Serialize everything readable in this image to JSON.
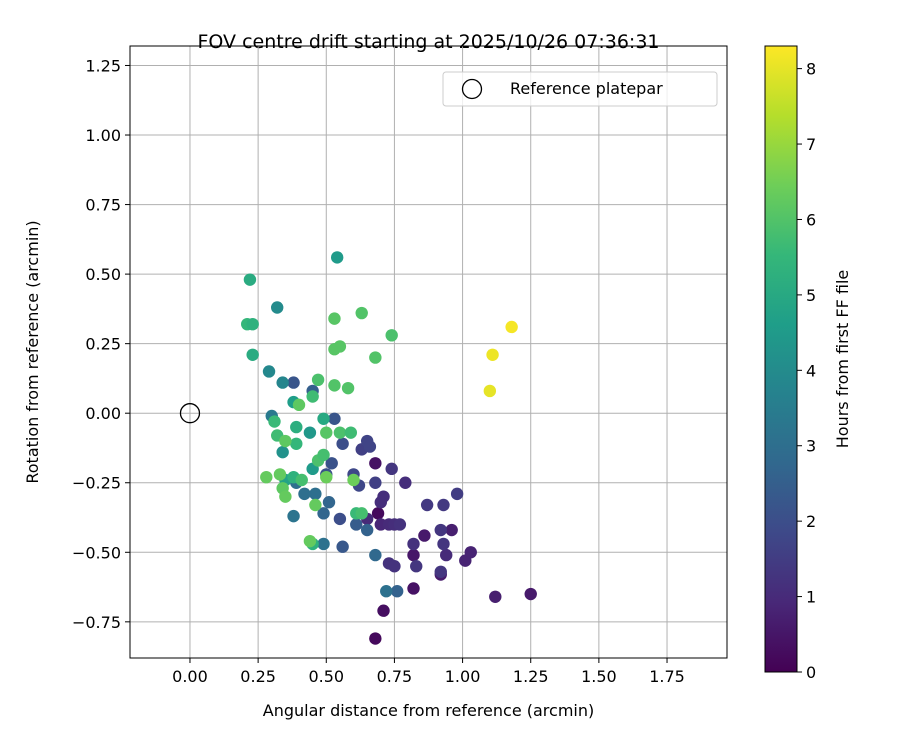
{
  "chart_data": {
    "type": "scatter",
    "title": "FOV centre drift starting at 2025/10/26 07:36:31",
    "xlabel": "Angular distance from reference (arcmin)",
    "ylabel": "Rotation from reference (arcmin)",
    "xlim": [
      -0.22,
      1.97
    ],
    "ylim": [
      -0.88,
      1.32
    ],
    "xticks": [
      "0.00",
      "0.25",
      "0.50",
      "0.75",
      "1.00",
      "1.25",
      "1.50",
      "1.75"
    ],
    "xtick_values": [
      0,
      0.25,
      0.5,
      0.75,
      1.0,
      1.25,
      1.5,
      1.75
    ],
    "yticks": [
      "−0.75",
      "−0.50",
      "−0.25",
      "0.00",
      "0.25",
      "0.50",
      "0.75",
      "1.00",
      "1.25"
    ],
    "ytick_values": [
      -0.75,
      -0.5,
      -0.25,
      0,
      0.25,
      0.5,
      0.75,
      1.0,
      1.25
    ],
    "grid": true,
    "legend": {
      "location": "top-right",
      "label": "Reference platepar"
    },
    "reference_point": {
      "x": 0.0,
      "y": 0.0
    },
    "colorbar": {
      "label": "Hours from first FF file",
      "range": [
        0,
        8.3
      ],
      "ticks": [
        "0",
        "1",
        "2",
        "3",
        "4",
        "5",
        "6",
        "7",
        "8"
      ],
      "tick_values": [
        0,
        1,
        2,
        3,
        4,
        5,
        6,
        7,
        8
      ],
      "colormap": "viridis",
      "stops": [
        "#440154",
        "#482878",
        "#3e4989",
        "#31688e",
        "#26828e",
        "#1f9e89",
        "#35b779",
        "#6ece58",
        "#b5de2b",
        "#fde725"
      ]
    },
    "series": [
      {
        "name": "FOV centre drift",
        "points": [
          {
            "x": 0.68,
            "y": -0.81,
            "h": 0.2
          },
          {
            "x": 0.71,
            "y": -0.71,
            "h": 0.3
          },
          {
            "x": 0.69,
            "y": -0.36,
            "h": 0.2
          },
          {
            "x": 0.68,
            "y": -0.18,
            "h": 0.4
          },
          {
            "x": 0.82,
            "y": -0.63,
            "h": 0.4
          },
          {
            "x": 0.82,
            "y": -0.51,
            "h": 0.5
          },
          {
            "x": 0.86,
            "y": -0.44,
            "h": 0.6
          },
          {
            "x": 0.92,
            "y": -0.58,
            "h": 0.6
          },
          {
            "x": 0.96,
            "y": -0.42,
            "h": 0.7
          },
          {
            "x": 1.01,
            "y": -0.53,
            "h": 0.8
          },
          {
            "x": 1.03,
            "y": -0.5,
            "h": 0.8
          },
          {
            "x": 1.12,
            "y": -0.66,
            "h": 0.7
          },
          {
            "x": 1.25,
            "y": -0.65,
            "h": 0.6
          },
          {
            "x": 0.94,
            "y": -0.51,
            "h": 1.0
          },
          {
            "x": 0.7,
            "y": -0.4,
            "h": 0.9
          },
          {
            "x": 0.73,
            "y": -0.4,
            "h": 1.0
          },
          {
            "x": 0.75,
            "y": -0.4,
            "h": 1.1
          },
          {
            "x": 0.77,
            "y": -0.4,
            "h": 1.2
          },
          {
            "x": 0.65,
            "y": -0.38,
            "h": 1.0
          },
          {
            "x": 0.71,
            "y": -0.3,
            "h": 1.1
          },
          {
            "x": 0.7,
            "y": -0.32,
            "h": 1.1
          },
          {
            "x": 0.74,
            "y": -0.2,
            "h": 1.3
          },
          {
            "x": 0.79,
            "y": -0.25,
            "h": 1.1
          },
          {
            "x": 0.73,
            "y": -0.54,
            "h": 1.2
          },
          {
            "x": 0.75,
            "y": -0.55,
            "h": 1.2
          },
          {
            "x": 0.83,
            "y": -0.55,
            "h": 1.3
          },
          {
            "x": 0.82,
            "y": -0.47,
            "h": 1.2
          },
          {
            "x": 0.92,
            "y": -0.57,
            "h": 1.3
          },
          {
            "x": 0.87,
            "y": -0.33,
            "h": 1.4
          },
          {
            "x": 0.92,
            "y": -0.42,
            "h": 1.3
          },
          {
            "x": 0.93,
            "y": -0.47,
            "h": 1.3
          },
          {
            "x": 0.93,
            "y": -0.33,
            "h": 1.4
          },
          {
            "x": 0.98,
            "y": -0.29,
            "h": 1.5
          },
          {
            "x": 0.63,
            "y": -0.13,
            "h": 1.6
          },
          {
            "x": 0.65,
            "y": -0.1,
            "h": 1.7
          },
          {
            "x": 0.66,
            "y": -0.12,
            "h": 1.7
          },
          {
            "x": 0.6,
            "y": -0.22,
            "h": 1.8
          },
          {
            "x": 0.62,
            "y": -0.26,
            "h": 1.8
          },
          {
            "x": 0.68,
            "y": -0.25,
            "h": 1.6
          },
          {
            "x": 0.56,
            "y": -0.11,
            "h": 2.0
          },
          {
            "x": 0.55,
            "y": -0.38,
            "h": 2.0
          },
          {
            "x": 0.52,
            "y": -0.18,
            "h": 2.1
          },
          {
            "x": 0.53,
            "y": -0.02,
            "h": 2.2
          },
          {
            "x": 0.5,
            "y": -0.22,
            "h": 2.1
          },
          {
            "x": 0.56,
            "y": -0.48,
            "h": 2.3
          },
          {
            "x": 0.61,
            "y": -0.4,
            "h": 2.4
          },
          {
            "x": 0.65,
            "y": -0.42,
            "h": 2.6
          },
          {
            "x": 0.68,
            "y": -0.51,
            "h": 2.8
          },
          {
            "x": 0.76,
            "y": -0.64,
            "h": 2.6
          },
          {
            "x": 0.72,
            "y": -0.64,
            "h": 3.1
          },
          {
            "x": 0.38,
            "y": 0.11,
            "h": 2.2
          },
          {
            "x": 0.45,
            "y": 0.08,
            "h": 2.5
          },
          {
            "x": 0.49,
            "y": -0.36,
            "h": 2.7
          },
          {
            "x": 0.46,
            "y": -0.29,
            "h": 3.0
          },
          {
            "x": 0.49,
            "y": -0.47,
            "h": 3.1
          },
          {
            "x": 0.51,
            "y": -0.32,
            "h": 2.7
          },
          {
            "x": 0.39,
            "y": -0.25,
            "h": 3.0
          },
          {
            "x": 0.38,
            "y": -0.37,
            "h": 3.2
          },
          {
            "x": 0.42,
            "y": -0.29,
            "h": 3.0
          },
          {
            "x": 0.3,
            "y": -0.01,
            "h": 3.4
          },
          {
            "x": 0.34,
            "y": 0.11,
            "h": 3.8
          },
          {
            "x": 0.29,
            "y": 0.15,
            "h": 3.9
          },
          {
            "x": 0.32,
            "y": 0.38,
            "h": 4.0
          },
          {
            "x": 0.34,
            "y": -0.14,
            "h": 4.2
          },
          {
            "x": 0.44,
            "y": -0.07,
            "h": 4.4
          },
          {
            "x": 0.45,
            "y": -0.2,
            "h": 4.5
          },
          {
            "x": 0.35,
            "y": -0.24,
            "h": 4.8
          },
          {
            "x": 0.38,
            "y": 0.04,
            "h": 4.6
          },
          {
            "x": 0.54,
            "y": 0.56,
            "h": 4.5
          },
          {
            "x": 0.49,
            "y": -0.02,
            "h": 5.0
          },
          {
            "x": 0.45,
            "y": -0.47,
            "h": 5.3
          },
          {
            "x": 0.38,
            "y": -0.23,
            "h": 5.3
          },
          {
            "x": 0.39,
            "y": -0.05,
            "h": 5.2
          },
          {
            "x": 0.23,
            "y": 0.21,
            "h": 5.1
          },
          {
            "x": 0.22,
            "y": 0.48,
            "h": 5.1
          },
          {
            "x": 0.21,
            "y": 0.32,
            "h": 5.5
          },
          {
            "x": 0.23,
            "y": 0.32,
            "h": 5.3
          },
          {
            "x": 0.39,
            "y": -0.11,
            "h": 5.5
          },
          {
            "x": 0.31,
            "y": -0.03,
            "h": 5.6
          },
          {
            "x": 0.32,
            "y": -0.08,
            "h": 5.7
          },
          {
            "x": 0.45,
            "y": 0.06,
            "h": 5.7
          },
          {
            "x": 0.41,
            "y": -0.24,
            "h": 5.8
          },
          {
            "x": 0.47,
            "y": -0.17,
            "h": 5.9
          },
          {
            "x": 0.49,
            "y": -0.15,
            "h": 5.8
          },
          {
            "x": 0.55,
            "y": -0.07,
            "h": 5.9
          },
          {
            "x": 0.59,
            "y": -0.07,
            "h": 5.7
          },
          {
            "x": 0.61,
            "y": -0.36,
            "h": 5.6
          },
          {
            "x": 0.63,
            "y": -0.36,
            "h": 5.8
          },
          {
            "x": 0.47,
            "y": 0.12,
            "h": 5.9
          },
          {
            "x": 0.53,
            "y": 0.1,
            "h": 6.0
          },
          {
            "x": 0.58,
            "y": 0.09,
            "h": 6.0
          },
          {
            "x": 0.74,
            "y": 0.28,
            "h": 5.9
          },
          {
            "x": 0.68,
            "y": 0.2,
            "h": 6.0
          },
          {
            "x": 0.63,
            "y": 0.36,
            "h": 6.0
          },
          {
            "x": 0.53,
            "y": 0.34,
            "h": 6.1
          },
          {
            "x": 0.53,
            "y": 0.23,
            "h": 6.1
          },
          {
            "x": 0.55,
            "y": 0.24,
            "h": 6.1
          },
          {
            "x": 0.5,
            "y": -0.07,
            "h": 6.1
          },
          {
            "x": 0.4,
            "y": 0.03,
            "h": 6.2
          },
          {
            "x": 0.35,
            "y": -0.1,
            "h": 6.2
          },
          {
            "x": 0.34,
            "y": -0.27,
            "h": 6.2
          },
          {
            "x": 0.35,
            "y": -0.3,
            "h": 6.3
          },
          {
            "x": 0.33,
            "y": -0.22,
            "h": 6.3
          },
          {
            "x": 0.28,
            "y": -0.23,
            "h": 6.3
          },
          {
            "x": 0.46,
            "y": -0.33,
            "h": 6.3
          },
          {
            "x": 0.5,
            "y": -0.23,
            "h": 6.4
          },
          {
            "x": 0.6,
            "y": -0.24,
            "h": 6.4
          },
          {
            "x": 0.44,
            "y": -0.46,
            "h": 6.3
          },
          {
            "x": 1.1,
            "y": 0.08,
            "h": 8.0
          },
          {
            "x": 1.11,
            "y": 0.21,
            "h": 8.1
          },
          {
            "x": 1.18,
            "y": 0.31,
            "h": 8.2
          }
        ]
      }
    ]
  }
}
